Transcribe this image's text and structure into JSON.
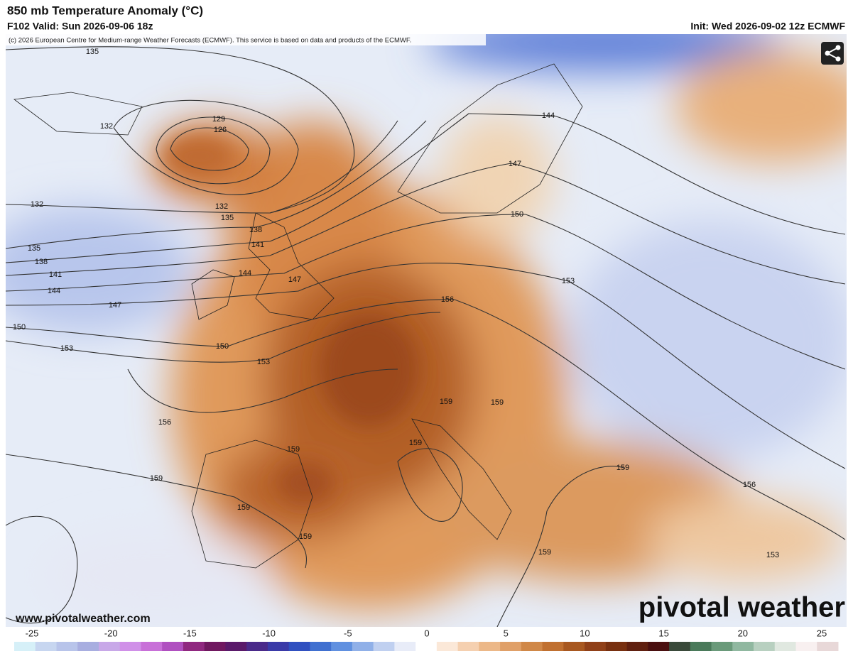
{
  "header": {
    "title": "850 mb Temperature Anomaly (°C)",
    "valid": "F102 Valid: Sun 2026-09-06 18z",
    "init": "Init: Wed 2026-09-02 12z ECMWF",
    "credit": "(c) 2026 European Centre for Medium-range Weather Forecasts (ECMWF). This service is based on data and products of the ECMWF."
  },
  "map": {
    "contour_labels": [
      135,
      132,
      129,
      126,
      132,
      132,
      135,
      138,
      135,
      141,
      138,
      144,
      141,
      147,
      144,
      147,
      150,
      150,
      153,
      153,
      156,
      156,
      150,
      147,
      144,
      153,
      159,
      159,
      159,
      159,
      159,
      159,
      159,
      159,
      156,
      159,
      153
    ],
    "website": "www.pivotalweather.com",
    "brand": "pivotal weather"
  },
  "colorbar": {
    "ticks": [
      -25,
      -20,
      -15,
      -10,
      -5,
      0,
      5,
      10,
      15,
      20,
      25
    ],
    "colors": [
      "#d6f0f8",
      "#c7d6f0",
      "#b8c4ea",
      "#a8aee0",
      "#c8a8e8",
      "#d090e8",
      "#c870d8",
      "#b050c0",
      "#902880",
      "#701860",
      "#5a1a6a",
      "#4a2a8a",
      "#3a3aa8",
      "#3050c0",
      "#4070d0",
      "#6090e0",
      "#90b0e8",
      "#c0d0f0",
      "#e8ecf8",
      "#ffffff",
      "#fbe8d8",
      "#f5d0b0",
      "#ecb888",
      "#e0a068",
      "#d08848",
      "#c07030",
      "#a85820",
      "#904018",
      "#783010",
      "#602010",
      "#4a1010",
      "#3a4a3a",
      "#4a7a5a",
      "#6a9a7a",
      "#90b8a0",
      "#b8d0c0",
      "#e0e8e0",
      "#f8f0f0",
      "#e8d8d8"
    ]
  }
}
